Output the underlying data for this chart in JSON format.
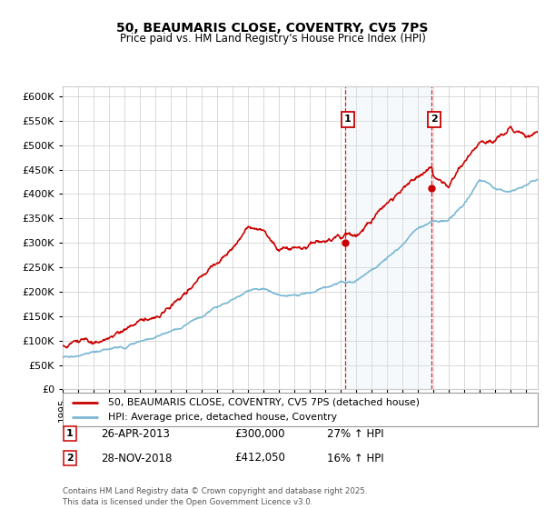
{
  "title": "50, BEAUMARIS CLOSE, COVENTRY, CV5 7PS",
  "subtitle": "Price paid vs. HM Land Registry's House Price Index (HPI)",
  "ylim": [
    0,
    620000
  ],
  "yticks": [
    0,
    50000,
    100000,
    150000,
    200000,
    250000,
    300000,
    350000,
    400000,
    450000,
    500000,
    550000,
    600000
  ],
  "xlim_start": 1995.0,
  "xlim_end": 2025.8,
  "sale1_date": 2013.32,
  "sale1_price": 300000,
  "sale1_label": "1",
  "sale1_pct": "27% ↑ HPI",
  "sale1_date_str": "26-APR-2013",
  "sale2_date": 2018.92,
  "sale2_price": 412050,
  "sale2_label": "2",
  "sale2_pct": "16% ↑ HPI",
  "sale2_date_str": "28-NOV-2018",
  "hpi_color": "#7ab8d4",
  "price_color": "#cc0000",
  "shade_color": "#d8eaf5",
  "grid_color": "#cccccc",
  "bg_color": "#ffffff",
  "legend_line1": "50, BEAUMARIS CLOSE, COVENTRY, CV5 7PS (detached house)",
  "legend_line2": "HPI: Average price, detached house, Coventry",
  "footnote": "Contains HM Land Registry data © Crown copyright and database right 2025.\nThis data is licensed under the Open Government Licence v3.0."
}
